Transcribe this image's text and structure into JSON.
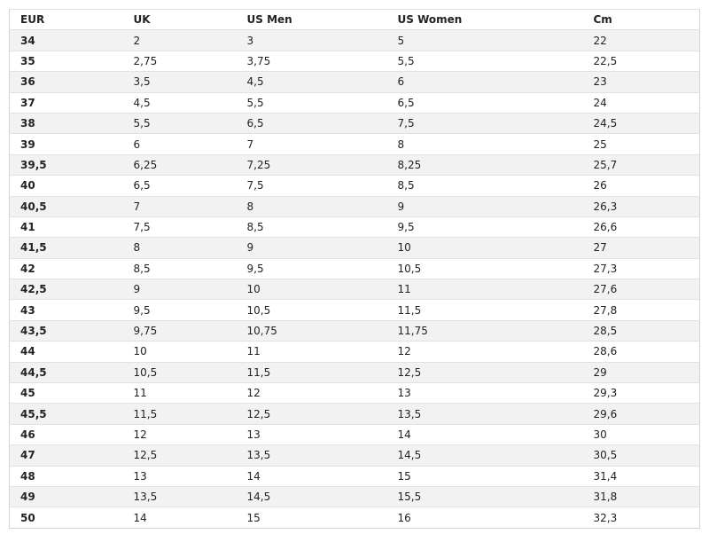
{
  "table": {
    "header": [
      "EUR",
      "UK",
      "US Men",
      "US Women",
      "Cm"
    ],
    "rows": [
      [
        "34",
        "2",
        "3",
        "5",
        "22"
      ],
      [
        "35",
        "2,75",
        "3,75",
        "5,5",
        "22,5"
      ],
      [
        "36",
        "3,5",
        "4,5",
        "6",
        "23"
      ],
      [
        "37",
        "4,5",
        "5,5",
        "6,5",
        "24"
      ],
      [
        "38",
        "5,5",
        "6,5",
        "7,5",
        "24,5"
      ],
      [
        "39",
        "6",
        "7",
        "8",
        "25"
      ],
      [
        "39,5",
        "6,25",
        "7,25",
        "8,25",
        "25,7"
      ],
      [
        "40",
        "6,5",
        "7,5",
        "8,5",
        "26"
      ],
      [
        "40,5",
        "7",
        "8",
        "9",
        "26,3"
      ],
      [
        "41",
        "7,5",
        "8,5",
        "9,5",
        "26,6"
      ],
      [
        "41,5",
        "8",
        "9",
        "10",
        "27"
      ],
      [
        "42",
        "8,5",
        "9,5",
        "10,5",
        "27,3"
      ],
      [
        "42,5",
        "9",
        "10",
        "11",
        "27,6"
      ],
      [
        "43",
        "9,5",
        "10,5",
        "11,5",
        "27,8"
      ],
      [
        "43,5",
        "9,75",
        "10,75",
        "11,75",
        "28,5"
      ],
      [
        "44",
        "10",
        "11",
        "12",
        "28,6"
      ],
      [
        "44,5",
        "10,5",
        "11,5",
        "12,5",
        "29"
      ],
      [
        "45",
        "11",
        "12",
        "13",
        "29,3"
      ],
      [
        "45,5",
        "11,5",
        "12,5",
        "13,5",
        "29,6"
      ],
      [
        "46",
        "12",
        "13",
        "14",
        "30"
      ],
      [
        "47",
        "12,5",
        "13,5",
        "14,5",
        "30,5"
      ],
      [
        "48",
        "13",
        "14",
        "15",
        "31,4"
      ],
      [
        "49",
        "13,5",
        "14,5",
        "15,5",
        "31,8"
      ],
      [
        "50",
        "14",
        "15",
        "16",
        "32,3"
      ]
    ]
  }
}
